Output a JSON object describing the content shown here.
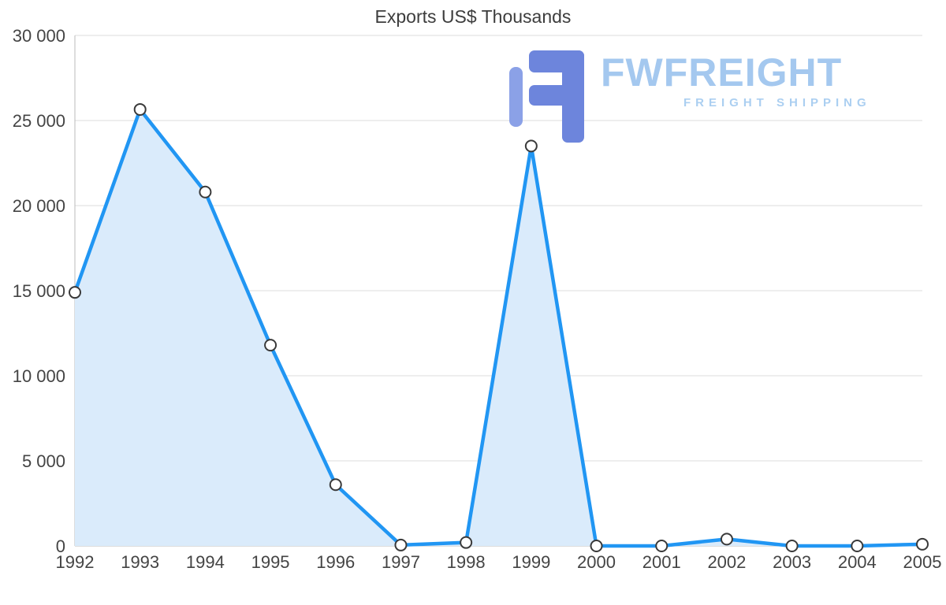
{
  "chart_data": {
    "type": "area",
    "title": "Exports US$ Thousands",
    "categories": [
      "1992",
      "1993",
      "1994",
      "1995",
      "1996",
      "1997",
      "1998",
      "1999",
      "2000",
      "2001",
      "2002",
      "2003",
      "2004",
      "2005"
    ],
    "values": [
      14900,
      25650,
      20800,
      11800,
      3600,
      50,
      200,
      23500,
      0,
      0,
      400,
      0,
      0,
      100
    ],
    "xlabel": "",
    "ylabel": "",
    "ylim": [
      0,
      30000
    ],
    "y_ticks": [
      0,
      5000,
      10000,
      15000,
      20000,
      25000,
      30000
    ],
    "y_tick_labels": [
      "0",
      "5 000",
      "10 000",
      "15 000",
      "20 000",
      "25 000",
      "30 000"
    ],
    "grid": true,
    "legend": "none",
    "line_color": "#2196F3",
    "area_color": "#DAEBFB",
    "point_fill": "#FFFFFF",
    "point_stroke": "#3A3A3A",
    "grid_color": "#DDDDDD",
    "axis_color": "#BBBBBB",
    "text_color": "#444444"
  },
  "logo": {
    "name": "FWFREIGHT",
    "subtitle": "FREIGHT SHIPPING",
    "text_color": "#A4C8EF",
    "subtitle_color": "#ABCFF1",
    "icon_color_primary": "#6D85DC",
    "icon_color_secondary": "#8BA1E7"
  }
}
